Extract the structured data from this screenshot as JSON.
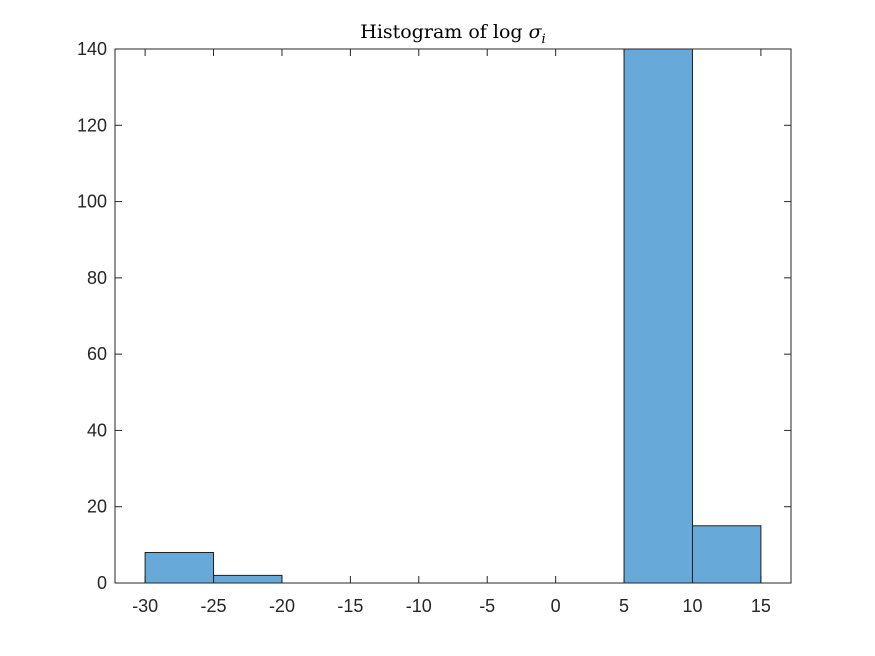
{
  "chart_data": {
    "type": "bar",
    "title": "Histogram of log",
    "title_symbol": "σ",
    "title_subscript": "i",
    "xlabel": "",
    "ylabel": "",
    "bin_edges": [
      -30,
      -25,
      -20,
      -15,
      -10,
      -5,
      0,
      5,
      10,
      15
    ],
    "counts": [
      8,
      2,
      0,
      0,
      0,
      0,
      0,
      140,
      15
    ],
    "xlim": [
      -32.2,
      17.2
    ],
    "ylim": [
      0,
      140
    ],
    "xticks": [
      -30,
      -25,
      -20,
      -15,
      -10,
      -5,
      0,
      5,
      10,
      15
    ],
    "xtick_labels": [
      "-30",
      "-25",
      "-20",
      "-15",
      "-10",
      "-5",
      "0",
      "5",
      "10",
      "15"
    ],
    "yticks": [
      0,
      20,
      40,
      60,
      80,
      100,
      120,
      140
    ],
    "ytick_labels": [
      "0",
      "20",
      "40",
      "60",
      "80",
      "100",
      "120",
      "140"
    ],
    "grid": false,
    "legend": "none",
    "colors": {
      "bar_fill": "#67aad9",
      "bar_edge": "#1f1f1f",
      "axis": "#262626"
    }
  }
}
